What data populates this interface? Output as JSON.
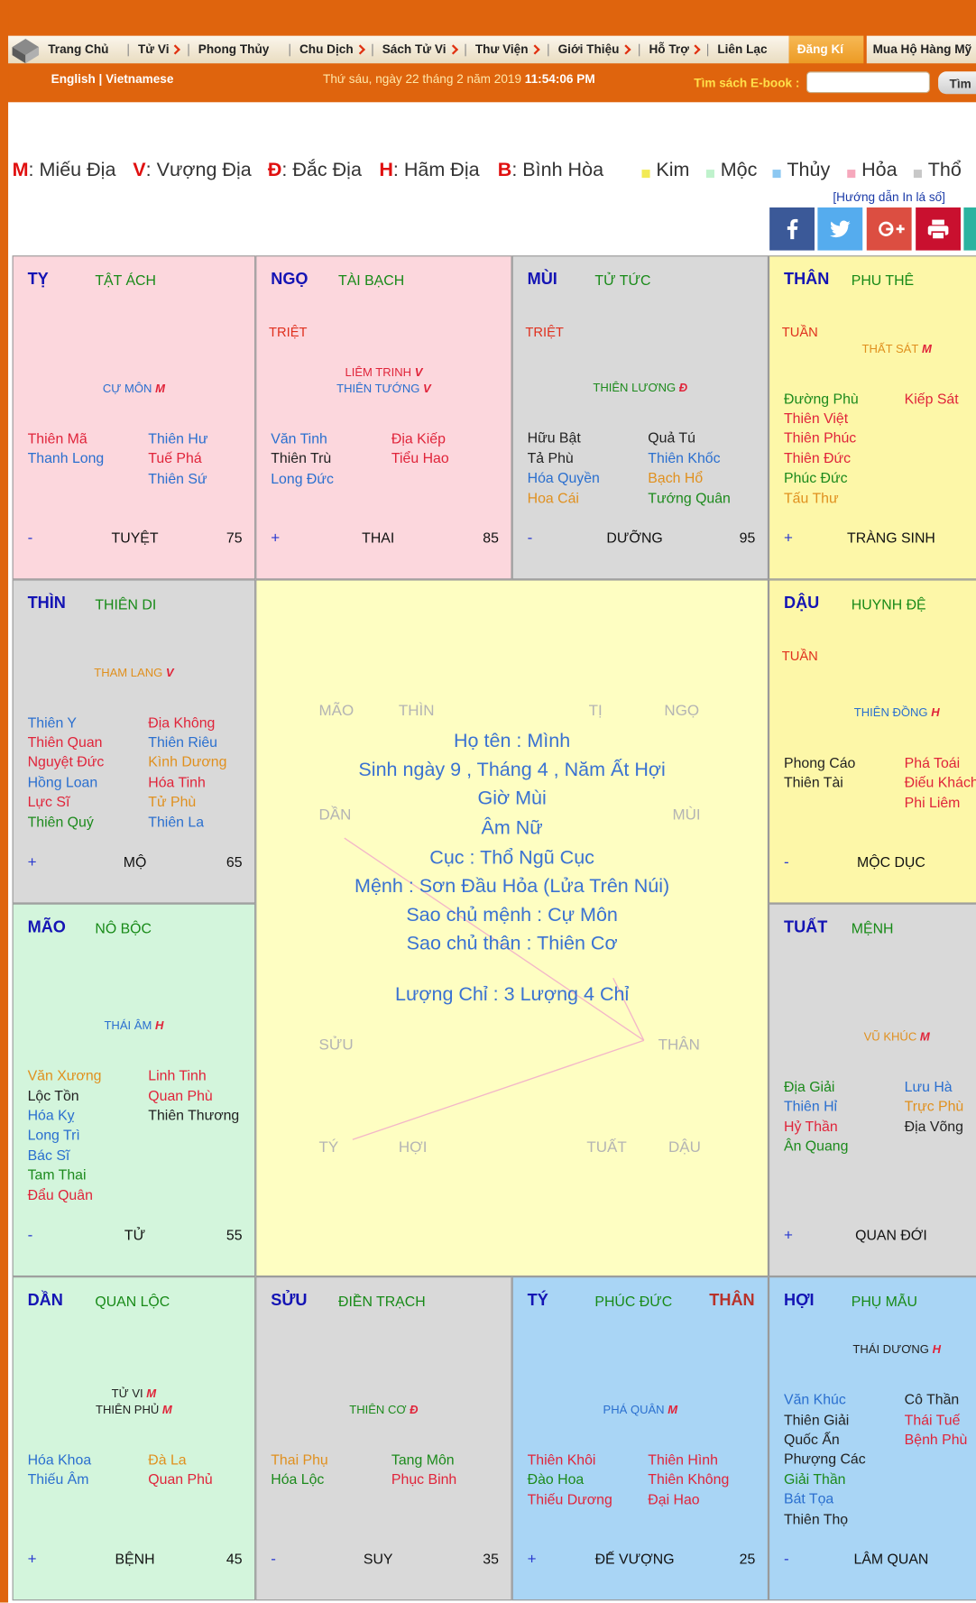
{
  "nav": {
    "items": [
      "Trang Chủ",
      "Tử Vi",
      "Phong Thủy",
      "Chu Dịch",
      "Sách Tử Vi",
      "Thư Viện",
      "Giới Thiệu",
      "Hỗ Trợ",
      "Liên Lạc"
    ],
    "register": "Đăng Kí",
    "shop": "Mua Hộ Hàng Mỹ"
  },
  "language": "English | Vietnamese",
  "date": "Thứ sáu, ngày 22 tháng 2 năm 2019",
  "time": "11:54:06 PM",
  "search": {
    "label": "Tìm sách E-book :",
    "button": "Tìm"
  },
  "legend": {
    "grades": [
      {
        "key": "M",
        "text": ": Miếu Địa"
      },
      {
        "key": "V",
        "text": ": Vượng Địa"
      },
      {
        "key": "Đ",
        "text": ": Đắc Địa"
      },
      {
        "key": "H",
        "text": ": Hãm Địa"
      },
      {
        "key": "B",
        "text": ": Bình Hòa"
      }
    ],
    "elements": [
      {
        "name": "Kim",
        "color": "#f2ea55"
      },
      {
        "name": "Mộc",
        "color": "#bff2cc"
      },
      {
        "name": "Thủy",
        "color": "#8cc8f2"
      },
      {
        "name": "Hỏa",
        "color": "#f6a8bc"
      },
      {
        "name": "Thổ",
        "color": "#c8c8c8"
      }
    ]
  },
  "print_guide": "[Hướng dẫn In lá số]",
  "palaces": [
    {
      "branch": "TỴ",
      "name": "TẬT ÁCH",
      "color": "#fcd7dd",
      "main": [
        {
          "name": "CỰ MÔN",
          "grade": "M",
          "color": "#2a6fcf"
        }
      ],
      "left": [
        {
          "name": "Thiên Mã",
          "color": "#e0243a"
        },
        {
          "name": "Thanh Long",
          "color": "#2a6fcf"
        }
      ],
      "right": [
        {
          "name": "Thiên Hư",
          "color": "#2a6fcf"
        },
        {
          "name": "Tuế Phá",
          "color": "#e0243a"
        },
        {
          "name": "Thiên Sứ",
          "color": "#2a6fcf"
        }
      ],
      "sign": "-",
      "stage": "TUYỆT",
      "number": 75
    },
    {
      "branch": "NGỌ",
      "name": "TÀI BẠCH",
      "extra": "TRIỆT",
      "color": "#fcd7dd",
      "main": [
        {
          "name": "LIÊM TRINH",
          "grade": "V",
          "color": "#e0243a"
        },
        {
          "name": "THIÊN TƯỚNG",
          "grade": "V",
          "color": "#2a6fcf"
        }
      ],
      "left": [
        {
          "name": "Văn Tinh",
          "color": "#2a6fcf"
        },
        {
          "name": "Thiên Trù",
          "color": "#222222"
        },
        {
          "name": "Long Đức",
          "color": "#2a6fcf"
        }
      ],
      "right": [
        {
          "name": "Địa Kiếp",
          "color": "#e0243a"
        },
        {
          "name": "Tiểu Hao",
          "color": "#e0243a"
        }
      ],
      "sign": "+",
      "stage": "THAI",
      "number": 85
    },
    {
      "branch": "MÙI",
      "name": "TỬ TỨC",
      "extra": "TRIỆT",
      "color": "#d9d9d9",
      "main": [
        {
          "name": "THIÊN LƯƠNG",
          "grade": "Đ",
          "color": "#1c8a1c"
        }
      ],
      "left": [
        {
          "name": "Hữu Bật",
          "color": "#222222"
        },
        {
          "name": "Tả Phù",
          "color": "#222222"
        },
        {
          "name": "Hóa Quyền",
          "color": "#2a6fcf"
        },
        {
          "name": "Hoa Cái",
          "color": "#e0901e"
        }
      ],
      "right": [
        {
          "name": "Quả Tú",
          "color": "#222222"
        },
        {
          "name": "Thiên Khốc",
          "color": "#2a6fcf"
        },
        {
          "name": "Bạch Hổ",
          "color": "#e0901e"
        },
        {
          "name": "Tướng Quân",
          "color": "#1c8a1c"
        }
      ],
      "sign": "-",
      "stage": "DƯỠNG",
      "number": 95
    },
    {
      "branch": "THÂN",
      "name": "PHU THÊ",
      "extra": "TUẦN",
      "color": "#fdf7a8",
      "main": [
        {
          "name": "THẤT SÁT",
          "grade": "M",
          "color": "#e0901e"
        }
      ],
      "left": [
        {
          "name": "Đường Phù",
          "color": "#1c8a1c"
        },
        {
          "name": "Thiên Việt",
          "color": "#e0243a"
        },
        {
          "name": "Thiên Phúc",
          "color": "#e0243a"
        },
        {
          "name": "Thiên Đức",
          "color": "#e0243a"
        },
        {
          "name": "Phúc Đức",
          "color": "#1c8a1c"
        },
        {
          "name": "Tấu Thư",
          "color": "#e0901e"
        }
      ],
      "right": [
        {
          "name": "Kiếp Sát",
          "color": "#e0243a"
        }
      ],
      "sign": "+",
      "stage": "TRÀNG SINH"
    },
    {
      "branch": "DẬU",
      "name": "HUYNH ĐỆ",
      "extra": "TUẦN",
      "color": "#fdf7a8",
      "main": [
        {
          "name": "THIÊN ĐỒNG",
          "grade": "H",
          "color": "#2a6fcf"
        }
      ],
      "left": [
        {
          "name": "Phong Cáo",
          "color": "#222222"
        },
        {
          "name": "Thiên Tài",
          "color": "#222222"
        }
      ],
      "right": [
        {
          "name": "Phá Toái",
          "color": "#e0243a"
        },
        {
          "name": "Điếu Khách",
          "color": "#e0243a"
        },
        {
          "name": "Phi Liêm",
          "color": "#e0243a"
        }
      ],
      "sign": "-",
      "stage": "MỘC DỤC"
    },
    {
      "branch": "TUẤT",
      "name": "MỆNH",
      "color": "#d9d9d9",
      "main": [
        {
          "name": "VŨ KHÚC",
          "grade": "M",
          "color": "#e0901e"
        }
      ],
      "left": [
        {
          "name": "Địa Giải",
          "color": "#1c8a1c"
        },
        {
          "name": "Thiên Hỉ",
          "color": "#2a6fcf"
        },
        {
          "name": "Hỷ Thần",
          "color": "#e0243a"
        },
        {
          "name": "Ân Quang",
          "color": "#1c8a1c"
        }
      ],
      "right": [
        {
          "name": "Lưu Hà",
          "color": "#2a6fcf"
        },
        {
          "name": "Trực Phù",
          "color": "#e0901e"
        },
        {
          "name": "Địa Võng",
          "color": "#222222"
        }
      ],
      "sign": "+",
      "stage": "QUAN ĐỚI"
    },
    {
      "branch": "HỢI",
      "name": "PHỤ MẪU",
      "color": "#a9d5f5",
      "main": [
        {
          "name": "THÁI DƯƠNG",
          "grade": "H",
          "color": "#222222"
        }
      ],
      "left": [
        {
          "name": "Văn Khúc",
          "color": "#2a6fcf"
        },
        {
          "name": "Thiên Giải",
          "color": "#222222"
        },
        {
          "name": "Quốc Ấn",
          "color": "#222222"
        },
        {
          "name": "Phượng Các",
          "color": "#222222"
        },
        {
          "name": "Giải Thần",
          "color": "#1c8a1c"
        },
        {
          "name": "Bát Tọa",
          "color": "#2a6fcf"
        },
        {
          "name": "Thiên Thọ",
          "color": "#222222"
        }
      ],
      "right": [
        {
          "name": "Cô Thần",
          "color": "#222222"
        },
        {
          "name": "Thái Tuế",
          "color": "#e0243a"
        },
        {
          "name": "Bệnh Phù",
          "color": "#e0243a"
        }
      ],
      "sign": "-",
      "stage": "LÂM QUAN"
    },
    {
      "branch": "TÝ",
      "name": "PHÚC ĐỨC",
      "body": "THÂN",
      "color": "#a9d5f5",
      "main": [
        {
          "name": "PHÁ QUÂN",
          "grade": "M",
          "color": "#2a6fcf"
        }
      ],
      "left": [
        {
          "name": "Thiên Khôi",
          "color": "#e0243a"
        },
        {
          "name": "Đào Hoa",
          "color": "#1c8a1c"
        },
        {
          "name": "Thiếu Dương",
          "color": "#e0243a"
        }
      ],
      "right": [
        {
          "name": "Thiên Hình",
          "color": "#e0243a"
        },
        {
          "name": "Thiên Không",
          "color": "#e0243a"
        },
        {
          "name": "Đại Hao",
          "color": "#e0243a"
        }
      ],
      "sign": "+",
      "stage": "ĐẾ VƯỢNG",
      "number": 25
    },
    {
      "branch": "SỬU",
      "name": "ĐIỀN TRẠCH",
      "color": "#d9d9d9",
      "main": [
        {
          "name": "THIÊN CƠ",
          "grade": "Đ",
          "color": "#1c8a1c"
        }
      ],
      "left": [
        {
          "name": "Thai Phụ",
          "color": "#e0901e"
        },
        {
          "name": "Hóa Lộc",
          "color": "#1c8a1c"
        }
      ],
      "right": [
        {
          "name": "Tang Môn",
          "color": "#1c8a1c"
        },
        {
          "name": "Phục Binh",
          "color": "#e0243a"
        }
      ],
      "sign": "-",
      "stage": "SUY",
      "number": 35
    },
    {
      "branch": "DẦN",
      "name": "QUAN LỘC",
      "color": "#d3f5dc",
      "main": [
        {
          "name": "TỬ VI",
          "grade": "M",
          "color": "#222222"
        },
        {
          "name": "THIÊN PHỦ",
          "grade": "M",
          "color": "#222222"
        }
      ],
      "left": [
        {
          "name": "Hóa Khoa",
          "color": "#2a6fcf"
        },
        {
          "name": "Thiếu Âm",
          "color": "#2a6fcf"
        }
      ],
      "right": [
        {
          "name": "Đà La",
          "color": "#e0901e"
        },
        {
          "name": "Quan Phủ",
          "color": "#e0243a"
        }
      ],
      "sign": "+",
      "stage": "BỆNH",
      "number": 45
    },
    {
      "branch": "MÃO",
      "name": "NÔ BỘC",
      "color": "#d3f5dc",
      "main": [
        {
          "name": "THÁI ÂM",
          "grade": "H",
          "color": "#2a6fcf"
        }
      ],
      "left": [
        {
          "name": "Văn Xương",
          "color": "#e0901e"
        },
        {
          "name": "Lộc Tồn",
          "color": "#222222"
        },
        {
          "name": "Hóa Kỵ",
          "color": "#2a6fcf"
        },
        {
          "name": "Long Trì",
          "color": "#2a6fcf"
        },
        {
          "name": "Bác Sĩ",
          "color": "#2a6fcf"
        },
        {
          "name": "Tam Thai",
          "color": "#1c8a1c"
        },
        {
          "name": "Đẩu Quân",
          "color": "#e0243a"
        }
      ],
      "right": [
        {
          "name": "Linh Tinh",
          "color": "#e0243a"
        },
        {
          "name": "Quan Phù",
          "color": "#e0243a"
        },
        {
          "name": "Thiên Thương",
          "color": "#222222"
        }
      ],
      "sign": "-",
      "stage": "TỬ",
      "number": 55
    },
    {
      "branch": "THÌN",
      "name": "THIÊN DI",
      "color": "#d9d9d9",
      "main": [
        {
          "name": "THAM LANG",
          "grade": "V",
          "color": "#e0901e"
        }
      ],
      "left": [
        {
          "name": "Thiên Y",
          "color": "#2a6fcf"
        },
        {
          "name": "Thiên Quan",
          "color": "#e0243a"
        },
        {
          "name": "Nguyệt Đức",
          "color": "#e0243a"
        },
        {
          "name": "Hồng Loan",
          "color": "#2a6fcf"
        },
        {
          "name": "Lực Sĩ",
          "color": "#e0243a"
        },
        {
          "name": "Thiên Quý",
          "color": "#1c8a1c"
        }
      ],
      "right": [
        {
          "name": "Địa Không",
          "color": "#e0243a"
        },
        {
          "name": "Thiên Riêu",
          "color": "#2a6fcf"
        },
        {
          "name": "Kình Dương",
          "color": "#e0901e"
        },
        {
          "name": "Hóa Tinh",
          "color": "#e0243a"
        },
        {
          "name": "Tử Phù",
          "color": "#e0901e"
        },
        {
          "name": "Thiên La",
          "color": "#2a6fcf"
        }
      ],
      "sign": "+",
      "stage": "MỘ",
      "number": 65
    }
  ],
  "center": {
    "labels": [
      "MÃO",
      "THÌN",
      "TỊ",
      "NGỌ",
      "DẦN",
      "MÙI",
      "SỬU",
      "THÂN",
      "TÝ",
      "HỢI",
      "TUẤT",
      "DẬU"
    ],
    "info": [
      "Họ tên : Mình",
      "Sinh ngày 9 , Tháng 4 , Năm Ất Hợi",
      "Giờ Mùi",
      "Âm Nữ",
      "Cục : Thổ Ngũ Cục",
      "Mệnh : Sơn Đầu Hỏa (Lửa Trên Núi)",
      "Sao chủ mệnh : Cự Môn",
      "Sao chủ thân : Thiên Cơ",
      "Lượng Chỉ : 3 Lượng 4 Chỉ"
    ]
  }
}
